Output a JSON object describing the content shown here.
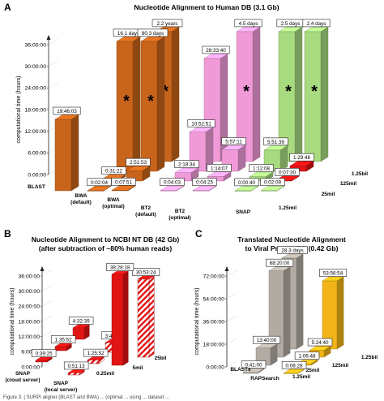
{
  "caption_fragment": "Figure 3. | SURPI aligner (BLAST and BWA) ... (optimal ... using ... dataset ...",
  "colors": {
    "orange": "#c8641b",
    "pink": "#f09ad8",
    "green": "#a8da80",
    "red": "#e11414",
    "grey": "#b2aba3",
    "gold": "#f2b418"
  },
  "chart_data": [
    {
      "panel": "A",
      "type": "bar",
      "title": "Nucleotide Alignment to Human DB (3.1 Gb)",
      "ylabel": "computational time (hours)",
      "yticks": [
        "0:00:00",
        "6:00:00",
        "12:00:00",
        "18:00:00",
        "24:00:00",
        "30:00:00",
        "36:00:00"
      ],
      "ylim_hours": [
        0,
        36
      ],
      "categories": [
        "BLAST",
        "BWA\n(default)",
        "BWA\n(optimal)",
        "BT2\n(default)",
        "BT2\n(optimal)",
        "SNAP"
      ],
      "depth_series": [
        "1.25bil",
        "125mil",
        "25mil",
        "1.25mil"
      ],
      "bars": [
        {
          "category": 0,
          "series": "1.25mil",
          "label": "19:46:03",
          "hours": 19.77,
          "color": "orange"
        },
        {
          "category": 1,
          "series": "1.25mil",
          "label": "0:02:04",
          "hours": 0.03,
          "color": "orange"
        },
        {
          "category": 1,
          "series": "25mil",
          "label": "0:31:22",
          "hours": 0.52,
          "color": "orange"
        },
        {
          "category": 1,
          "series": "125mil",
          "label": "16.1 days",
          "hours": 36,
          "truncated": true,
          "color": "orange"
        },
        {
          "category": 2,
          "series": "1.25mil",
          "label": "0:07:51",
          "hours": 0.13,
          "color": "orange"
        },
        {
          "category": 2,
          "series": "25mil",
          "label": "2:51:53",
          "hours": 2.86,
          "color": "orange"
        },
        {
          "category": 2,
          "series": "125mil",
          "label": "80.3 days",
          "hours": 36,
          "truncated": true,
          "color": "orange"
        },
        {
          "category": 2,
          "series": "1.25bil",
          "label": "2.2 years",
          "hours": 36,
          "truncated": true,
          "color": "orange"
        },
        {
          "category": 3,
          "series": "1.25mil",
          "label": "0:04:03",
          "hours": 0.07,
          "color": "pink"
        },
        {
          "category": 3,
          "series": "25mil",
          "label": "2:18:34",
          "hours": 2.31,
          "color": "pink"
        },
        {
          "category": 3,
          "series": "125mil",
          "label": "10:52:51",
          "hours": 10.88,
          "color": "pink"
        },
        {
          "category": 3,
          "series": "1.25bil",
          "label": "28:33:40",
          "hours": 28.56,
          "color": "pink"
        },
        {
          "category": 4,
          "series": "1.25mil",
          "label": "0:04:25",
          "hours": 0.07,
          "color": "pink"
        },
        {
          "category": 4,
          "series": "25mil",
          "label": "1:14:07",
          "hours": 1.24,
          "color": "pink"
        },
        {
          "category": 4,
          "series": "125mil",
          "label": "5:57:11",
          "hours": 5.95,
          "color": "pink"
        },
        {
          "category": 4,
          "series": "1.25bil",
          "label": "4.5 days",
          "hours": 36,
          "truncated": true,
          "color": "pink"
        },
        {
          "category": 5,
          "series": "1.25mil",
          "label": "0:00:40",
          "hours": 0.01,
          "color": "green"
        },
        {
          "category": 5,
          "series": "25mil",
          "label": "1:12:08",
          "hours": 1.2,
          "color": "green"
        },
        {
          "category": 5,
          "series": "125mil",
          "label": "5:51:39",
          "hours": 5.86,
          "color": "green"
        },
        {
          "category": 5,
          "series": "1.25bil",
          "label": "2.5 days",
          "hours": 36,
          "truncated": true,
          "color": "green"
        },
        {
          "category": 6,
          "series": "1.25mil",
          "label": "0:02:09",
          "hours": 0.04,
          "color": "green"
        },
        {
          "category": 6,
          "series": "25mil",
          "label": "0:07:30",
          "hours": 0.13,
          "color": "red"
        },
        {
          "category": 6,
          "series": "125mil",
          "label": "1:29:48",
          "hours": 1.5,
          "color": "red"
        },
        {
          "category": 6,
          "series": "1.25bil",
          "label": "2.4 days",
          "hours": 36,
          "truncated": true,
          "color": "green"
        }
      ]
    },
    {
      "panel": "B",
      "type": "bar",
      "title": "Nucleotide Alignment to NCBI NT DB (42 Gb)\n(after subtraction of ~80% human reads)",
      "ylabel": "computational time (hours)",
      "yticks": [
        "0:00:00",
        "6:00:00",
        "12:00:00",
        "18:00:00",
        "24:00:00",
        "30:00:00",
        "36:00:00"
      ],
      "ylim_hours": [
        0,
        36
      ],
      "categories": [
        "SNAP\n(cloud server)",
        "SNAP\n(local server)"
      ],
      "depth_series": [
        "0.25mil",
        "5mil",
        "25bil"
      ],
      "bars": [
        {
          "category": 0,
          "series": "0.25mil",
          "label": "0:39:25",
          "hours": 0.66,
          "color": "red"
        },
        {
          "category": 0,
          "series": "5mil",
          "label": "1:35:52",
          "hours": 1.6,
          "color": "red"
        },
        {
          "category": 0,
          "series": "25bil",
          "label": "4:32:39",
          "hours": 4.54,
          "color": "red"
        },
        {
          "category": 1,
          "series": "0.25mil",
          "label": "0:51:13",
          "hours": 0.85,
          "color": "red",
          "hatched": true
        },
        {
          "category": 1,
          "series": "5mil",
          "label": "1:25:52",
          "hours": 1.43,
          "color": "red",
          "hatched": true
        },
        {
          "category": 1,
          "series": "25bil",
          "label": "3:48:16",
          "hours": 3.8,
          "color": "red",
          "hatched": true
        },
        {
          "category": 1,
          "series": "extra",
          "label": "38:28:18",
          "hours": 38.47,
          "color": "red"
        },
        {
          "category": 1,
          "series": "extra2",
          "label": "30:53:24",
          "hours": 30.89,
          "color": "red",
          "hatched": true
        }
      ]
    },
    {
      "panel": "C",
      "type": "bar",
      "title": "Translated Nucleotide Alignment\nto Viral Protein DB (0.42 Gb)",
      "ylabel": "computational time (hours)",
      "yticks": [
        "0:00:00",
        "18:00:00",
        "36:00:00",
        "54:00:00",
        "72:00:00"
      ],
      "ylim_hours": [
        0,
        72
      ],
      "categories": [
        "BLASTx",
        "RAPSearch"
      ],
      "depth_series": [
        "1.25mil",
        "25mil",
        "125mil",
        "1.25bil"
      ],
      "bars": [
        {
          "category": 0,
          "series": "1.25mil",
          "label": "0:41:00",
          "hours": 0.68,
          "color": "grey"
        },
        {
          "category": 0,
          "series": "25mil",
          "label": "13:40:00",
          "hours": 13.67,
          "color": "grey"
        },
        {
          "category": 0,
          "series": "125mil",
          "label": "68:20:00",
          "hours": 68.33,
          "color": "grey"
        },
        {
          "category": 0,
          "series": "1.25bil",
          "label": "28.3 days",
          "hours": 72,
          "truncated": true,
          "color": "grey"
        },
        {
          "category": 1,
          "series": "1.25mil",
          "label": "0:06:28",
          "hours": 0.11,
          "color": "gold"
        },
        {
          "category": 1,
          "series": "25mil",
          "label": "1:06:48",
          "hours": 1.11,
          "color": "gold"
        },
        {
          "category": 1,
          "series": "125mil",
          "label": "5:24:40",
          "hours": 5.41,
          "color": "gold"
        },
        {
          "category": 1,
          "series": "1.25bil",
          "label": "53:56:54",
          "hours": 53.95,
          "color": "gold"
        }
      ]
    }
  ]
}
